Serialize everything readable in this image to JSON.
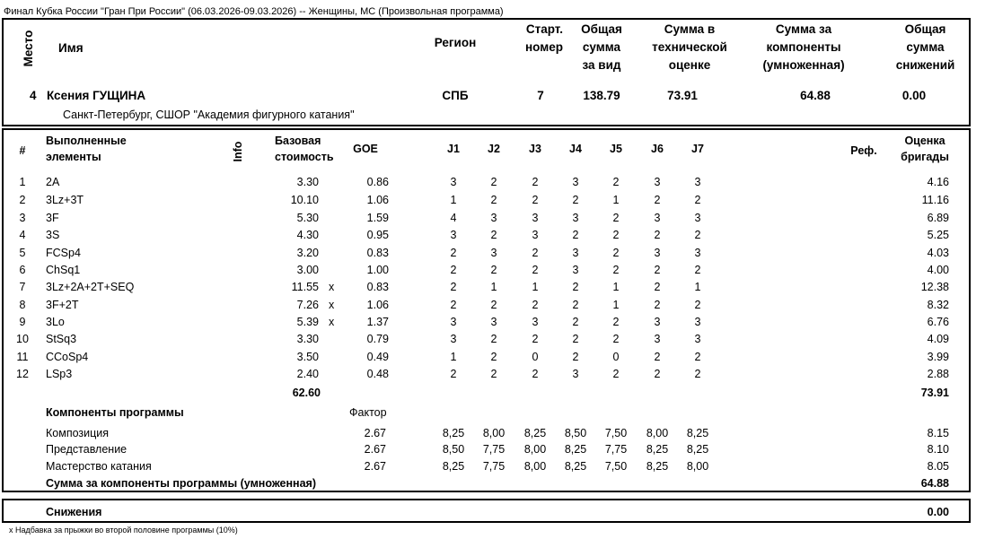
{
  "title": "Финал Кубка России \"Гран При России\" (06.03.2026-09.03.2026)  --  Женщины, МС  (Произвольная программа)",
  "summary": {
    "headers": {
      "place": "Место",
      "name": "Имя",
      "region": "Регион",
      "start_number": [
        "Старт.",
        "номер"
      ],
      "total_segment": [
        "Общая",
        "сумма",
        "за вид"
      ],
      "tes": [
        "Сумма в",
        "технической",
        "оценке"
      ],
      "pcs": [
        "Сумма за",
        "компоненты",
        "(умноженная)"
      ],
      "deductions": [
        "Общая",
        "сумма",
        "снижений"
      ]
    },
    "place": "4",
    "name": "Ксения ГУЩИНА",
    "club": "Санкт-Петербург, СШОР \"Академия фигурного катания\"",
    "region": "СПБ",
    "start_number": "7",
    "total_segment": "138.79",
    "tes": "73.91",
    "pcs": "64.88",
    "deductions": "0.00"
  },
  "elements_table": {
    "headers": {
      "num": "#",
      "element": [
        "Выполненные",
        "элементы"
      ],
      "info": "Info",
      "base": [
        "Базовая",
        "стоимость"
      ],
      "goe": "GOE",
      "judges": [
        "J1",
        "J2",
        "J3",
        "J4",
        "J5",
        "J6",
        "J7"
      ],
      "ref": "Реф.",
      "score": [
        "Оценка",
        "бригады"
      ]
    },
    "rows": [
      {
        "num": "1",
        "element": "2A",
        "base": "3.30",
        "bonus": "",
        "goe": "0.86",
        "judges": [
          "3",
          "2",
          "2",
          "3",
          "2",
          "3",
          "3"
        ],
        "score": "4.16"
      },
      {
        "num": "2",
        "element": "3Lz+3T",
        "base": "10.10",
        "bonus": "",
        "goe": "1.06",
        "judges": [
          "1",
          "2",
          "2",
          "2",
          "1",
          "2",
          "2"
        ],
        "score": "11.16"
      },
      {
        "num": "3",
        "element": "3F",
        "base": "5.30",
        "bonus": "",
        "goe": "1.59",
        "judges": [
          "4",
          "3",
          "3",
          "3",
          "2",
          "3",
          "3"
        ],
        "score": "6.89"
      },
      {
        "num": "4",
        "element": "3S",
        "base": "4.30",
        "bonus": "",
        "goe": "0.95",
        "judges": [
          "3",
          "2",
          "3",
          "2",
          "2",
          "2",
          "2"
        ],
        "score": "5.25"
      },
      {
        "num": "5",
        "element": "FCSp4",
        "base": "3.20",
        "bonus": "",
        "goe": "0.83",
        "judges": [
          "2",
          "3",
          "2",
          "3",
          "2",
          "3",
          "3"
        ],
        "score": "4.03"
      },
      {
        "num": "6",
        "element": "ChSq1",
        "base": "3.00",
        "bonus": "",
        "goe": "1.00",
        "judges": [
          "2",
          "2",
          "2",
          "3",
          "2",
          "2",
          "2"
        ],
        "score": "4.00"
      },
      {
        "num": "7",
        "element": "3Lz+2A+2T+SEQ",
        "base": "11.55",
        "bonus": "x",
        "goe": "0.83",
        "judges": [
          "2",
          "1",
          "1",
          "2",
          "1",
          "2",
          "1"
        ],
        "score": "12.38"
      },
      {
        "num": "8",
        "element": "3F+2T",
        "base": "7.26",
        "bonus": "x",
        "goe": "1.06",
        "judges": [
          "2",
          "2",
          "2",
          "2",
          "1",
          "2",
          "2"
        ],
        "score": "8.32"
      },
      {
        "num": "9",
        "element": "3Lo",
        "base": "5.39",
        "bonus": "x",
        "goe": "1.37",
        "judges": [
          "3",
          "3",
          "3",
          "2",
          "2",
          "3",
          "3"
        ],
        "score": "6.76"
      },
      {
        "num": "10",
        "element": "StSq3",
        "base": "3.30",
        "bonus": "",
        "goe": "0.79",
        "judges": [
          "3",
          "2",
          "2",
          "2",
          "2",
          "3",
          "3"
        ],
        "score": "4.09"
      },
      {
        "num": "11",
        "element": "CCoSp4",
        "base": "3.50",
        "bonus": "",
        "goe": "0.49",
        "judges": [
          "1",
          "2",
          "0",
          "2",
          "0",
          "2",
          "2"
        ],
        "score": "3.99"
      },
      {
        "num": "12",
        "element": "LSp3",
        "base": "2.40",
        "bonus": "",
        "goe": "0.48",
        "judges": [
          "2",
          "2",
          "2",
          "3",
          "2",
          "2",
          "2"
        ],
        "score": "2.88"
      }
    ],
    "base_total": "62.60",
    "score_total": "73.91"
  },
  "components": {
    "title": "Компоненты программы",
    "factor_label": "Фактор",
    "rows": [
      {
        "name": "Композиция",
        "factor": "2.67",
        "judges": [
          "8,25",
          "8,00",
          "8,25",
          "8,50",
          "7,50",
          "8,00",
          "8,25"
        ],
        "score": "8.15"
      },
      {
        "name": "Представление",
        "factor": "2.67",
        "judges": [
          "8,50",
          "7,75",
          "8,00",
          "8,25",
          "7,75",
          "8,25",
          "8,25"
        ],
        "score": "8.10"
      },
      {
        "name": "Мастерство катания",
        "factor": "2.67",
        "judges": [
          "8,25",
          "7,75",
          "8,00",
          "8,25",
          "7,50",
          "8,25",
          "8,00"
        ],
        "score": "8.05"
      }
    ],
    "total_label": "Сумма за компоненты программы (умноженная)",
    "total": "64.88"
  },
  "deductions": {
    "label": "Снижения",
    "value": "0.00"
  },
  "footnote": "x Надбавка за прыжки во второй половине программы (10%)"
}
